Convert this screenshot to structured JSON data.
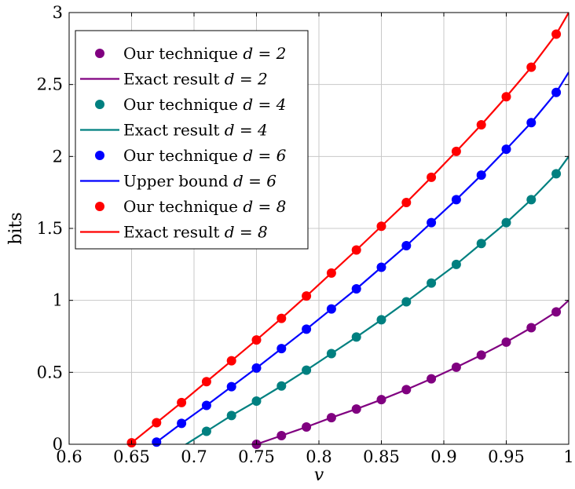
{
  "chart_data": {
    "type": "line",
    "title": "",
    "xlabel": "v",
    "ylabel": "bits",
    "xlim": [
      0.6,
      1.0
    ],
    "ylim": [
      0,
      3
    ],
    "xticks": [
      0.6,
      0.65,
      0.7,
      0.75,
      0.8,
      0.85,
      0.9,
      0.95,
      1.0
    ],
    "xtick_labels": [
      "0.6",
      "0.65",
      "0.7",
      "0.75",
      "0.8",
      "0.85",
      "0.9",
      "0.95",
      "1"
    ],
    "yticks": [
      0,
      0.5,
      1,
      1.5,
      2,
      2.5,
      3
    ],
    "ytick_labels": [
      "0",
      "0.5",
      "1",
      "1.5",
      "2",
      "2.5",
      "3"
    ],
    "grid": true,
    "legend_position": "top-left",
    "series": [
      {
        "name": "Our technique d = 2",
        "kind": "markers",
        "color": "#800080",
        "x": [
          0.75,
          0.77,
          0.79,
          0.81,
          0.83,
          0.85,
          0.87,
          0.89,
          0.91,
          0.93,
          0.95,
          0.97,
          0.99
        ],
        "y": [
          0.0,
          0.06,
          0.12,
          0.185,
          0.245,
          0.31,
          0.38,
          0.455,
          0.535,
          0.62,
          0.71,
          0.81,
          0.92
        ]
      },
      {
        "name": "Exact result d = 2",
        "kind": "line",
        "color": "#800080",
        "x": [
          0.75,
          0.77,
          0.79,
          0.81,
          0.83,
          0.85,
          0.87,
          0.89,
          0.91,
          0.93,
          0.95,
          0.97,
          0.99,
          1.0
        ],
        "y": [
          0.0,
          0.06,
          0.12,
          0.185,
          0.245,
          0.31,
          0.38,
          0.455,
          0.535,
          0.62,
          0.71,
          0.81,
          0.92,
          1.0
        ]
      },
      {
        "name": "Our technique d = 4",
        "kind": "markers",
        "color": "#008080",
        "x": [
          0.71,
          0.73,
          0.75,
          0.77,
          0.79,
          0.81,
          0.83,
          0.85,
          0.87,
          0.89,
          0.91,
          0.93,
          0.95,
          0.97,
          0.99
        ],
        "y": [
          0.09,
          0.2,
          0.3,
          0.405,
          0.515,
          0.63,
          0.745,
          0.865,
          0.99,
          1.12,
          1.25,
          1.395,
          1.54,
          1.7,
          1.88
        ]
      },
      {
        "name": "Exact result d = 4",
        "kind": "line",
        "color": "#008080",
        "x": [
          0.69,
          0.71,
          0.73,
          0.75,
          0.77,
          0.79,
          0.81,
          0.83,
          0.85,
          0.87,
          0.89,
          0.91,
          0.93,
          0.95,
          0.97,
          0.99,
          1.0
        ],
        "y": [
          -0.02,
          0.09,
          0.2,
          0.3,
          0.405,
          0.515,
          0.63,
          0.745,
          0.865,
          0.99,
          1.12,
          1.25,
          1.395,
          1.54,
          1.7,
          1.88,
          2.0
        ]
      },
      {
        "name": "Our technique d = 6",
        "kind": "markers",
        "color": "#0000ff",
        "x": [
          0.67,
          0.69,
          0.71,
          0.73,
          0.75,
          0.77,
          0.79,
          0.81,
          0.83,
          0.85,
          0.87,
          0.89,
          0.91,
          0.93,
          0.95,
          0.97,
          0.99
        ],
        "y": [
          0.015,
          0.145,
          0.27,
          0.4,
          0.53,
          0.665,
          0.8,
          0.94,
          1.08,
          1.23,
          1.38,
          1.54,
          1.7,
          1.87,
          2.05,
          2.235,
          2.445
        ]
      },
      {
        "name": "Upper bound d = 6",
        "kind": "line",
        "color": "#0000ff",
        "x": [
          0.667,
          0.67,
          0.69,
          0.71,
          0.73,
          0.75,
          0.77,
          0.79,
          0.81,
          0.83,
          0.85,
          0.87,
          0.89,
          0.91,
          0.93,
          0.95,
          0.97,
          0.99,
          1.0
        ],
        "y": [
          0.0,
          0.015,
          0.145,
          0.27,
          0.4,
          0.53,
          0.665,
          0.8,
          0.94,
          1.08,
          1.23,
          1.38,
          1.54,
          1.7,
          1.87,
          2.05,
          2.235,
          2.445,
          2.585
        ]
      },
      {
        "name": "Our technique d = 8",
        "kind": "markers",
        "color": "#ff0000",
        "x": [
          0.65,
          0.67,
          0.69,
          0.71,
          0.73,
          0.75,
          0.77,
          0.79,
          0.81,
          0.83,
          0.85,
          0.87,
          0.89,
          0.91,
          0.93,
          0.95,
          0.97,
          0.99
        ],
        "y": [
          0.01,
          0.15,
          0.29,
          0.435,
          0.58,
          0.725,
          0.875,
          1.03,
          1.19,
          1.35,
          1.515,
          1.68,
          1.855,
          2.035,
          2.22,
          2.415,
          2.62,
          2.85
        ]
      },
      {
        "name": "Exact result d = 8",
        "kind": "line",
        "color": "#ff0000",
        "x": [
          0.65,
          0.67,
          0.69,
          0.71,
          0.73,
          0.75,
          0.77,
          0.79,
          0.81,
          0.83,
          0.85,
          0.87,
          0.89,
          0.91,
          0.93,
          0.95,
          0.97,
          0.99,
          1.0
        ],
        "y": [
          0.01,
          0.15,
          0.29,
          0.435,
          0.58,
          0.725,
          0.875,
          1.03,
          1.19,
          1.35,
          1.515,
          1.68,
          1.855,
          2.035,
          2.22,
          2.415,
          2.62,
          2.85,
          3.0
        ]
      }
    ],
    "legend": [
      {
        "label": "Our technique",
        "math": "d = 2",
        "kind": "markers",
        "color": "#800080"
      },
      {
        "label": "Exact result",
        "math": "d = 2",
        "kind": "line",
        "color": "#800080"
      },
      {
        "label": "Our technique",
        "math": "d = 4",
        "kind": "markers",
        "color": "#008080"
      },
      {
        "label": "Exact result",
        "math": "d = 4",
        "kind": "line",
        "color": "#008080"
      },
      {
        "label": "Our technique",
        "math": "d = 6",
        "kind": "markers",
        "color": "#0000ff"
      },
      {
        "label": "Upper bound",
        "math": "d = 6",
        "kind": "line",
        "color": "#0000ff"
      },
      {
        "label": "Our technique",
        "math": "d = 8",
        "kind": "markers",
        "color": "#ff0000"
      },
      {
        "label": "Exact result",
        "math": "d = 8",
        "kind": "line",
        "color": "#ff0000"
      }
    ]
  }
}
